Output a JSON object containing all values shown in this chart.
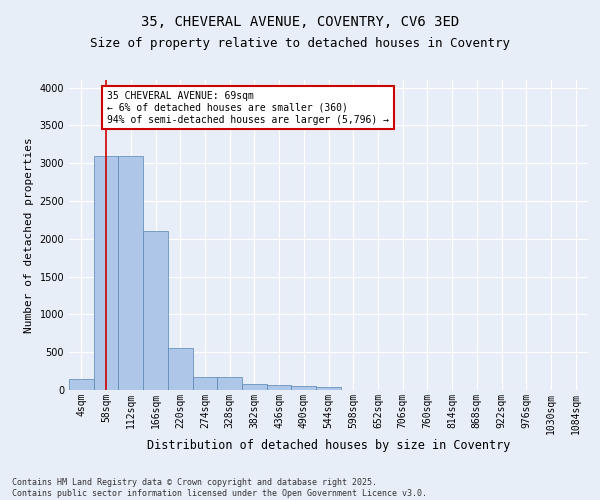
{
  "title1": "35, CHEVERAL AVENUE, COVENTRY, CV6 3ED",
  "title2": "Size of property relative to detached houses in Coventry",
  "xlabel": "Distribution of detached houses by size in Coventry",
  "ylabel": "Number of detached properties",
  "bin_labels": [
    "4sqm",
    "58sqm",
    "112sqm",
    "166sqm",
    "220sqm",
    "274sqm",
    "328sqm",
    "382sqm",
    "436sqm",
    "490sqm",
    "544sqm",
    "598sqm",
    "652sqm",
    "706sqm",
    "760sqm",
    "814sqm",
    "868sqm",
    "922sqm",
    "976sqm",
    "1030sqm",
    "1084sqm"
  ],
  "bar_values": [
    150,
    3100,
    3100,
    2100,
    550,
    175,
    175,
    80,
    60,
    50,
    40,
    5,
    3,
    2,
    1,
    1,
    0,
    0,
    0,
    0,
    0
  ],
  "bar_color": "#aec6e8",
  "bar_edge_color": "#5585b5",
  "vline_color": "#cc0000",
  "vline_x": 1,
  "annotation_text": "35 CHEVERAL AVENUE: 69sqm\n← 6% of detached houses are smaller (360)\n94% of semi-detached houses are larger (5,796) →",
  "annotation_box_color": "#ffffff",
  "annotation_box_edge_color": "#cc0000",
  "ylim": [
    0,
    4100
  ],
  "yticks": [
    0,
    500,
    1000,
    1500,
    2000,
    2500,
    3000,
    3500,
    4000
  ],
  "footnote": "Contains HM Land Registry data © Crown copyright and database right 2025.\nContains public sector information licensed under the Open Government Licence v3.0.",
  "background_color": "#e8eef7",
  "grid_color": "#ffffff",
  "title_fontsize": 10,
  "subtitle_fontsize": 9,
  "ylabel_fontsize": 8,
  "xlabel_fontsize": 8.5,
  "annot_fontsize": 7,
  "tick_fontsize": 7,
  "footnote_fontsize": 6
}
